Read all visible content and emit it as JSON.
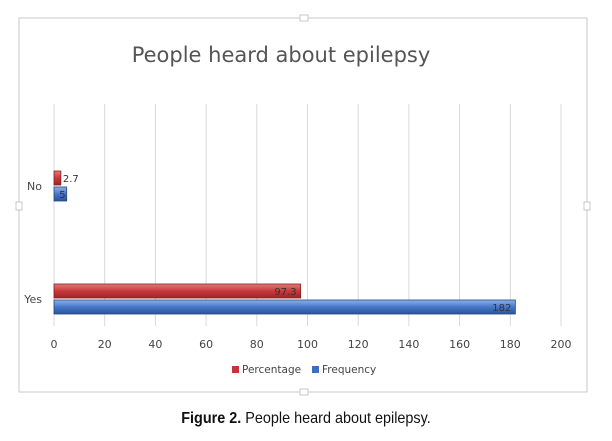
{
  "chart_data": {
    "type": "bar",
    "orientation": "horizontal",
    "title": "People heard about epilepsy",
    "categories": [
      "Yes",
      "No"
    ],
    "series": [
      {
        "name": "Percentage",
        "values": [
          97.3,
          2.7
        ],
        "labels": [
          "97.3",
          "2.7"
        ],
        "color": "#c0373a"
      },
      {
        "name": "Frequency",
        "values": [
          182,
          5
        ],
        "labels": [
          "182",
          "5"
        ],
        "color": "#3d6fc0"
      }
    ],
    "x_ticks": [
      "0",
      "20",
      "40",
      "60",
      "80",
      "100",
      "120",
      "140",
      "160",
      "180",
      "200"
    ],
    "xlim": [
      0,
      200
    ],
    "grid": "vertical",
    "legend": "bottom"
  },
  "caption": {
    "label": "Figure 2.",
    "text": "People heard about epilepsy."
  }
}
